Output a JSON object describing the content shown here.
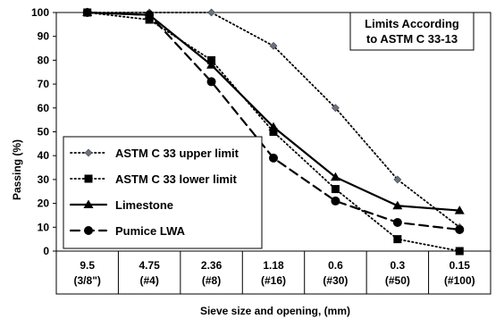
{
  "chart_data": {
    "type": "line",
    "categories": [
      {
        "top": "9.5",
        "bottom": "(3/8\")"
      },
      {
        "top": "4.75",
        "bottom": "(#4)"
      },
      {
        "top": "2.36",
        "bottom": "(#8)"
      },
      {
        "top": "1.18",
        "bottom": "(#16)"
      },
      {
        "top": "0.6",
        "bottom": "(#30)"
      },
      {
        "top": "0.3",
        "bottom": "(#50)"
      },
      {
        "top": "0.15",
        "bottom": "(#100)"
      }
    ],
    "xlabel": "Sieve size and opening, (mm)",
    "ylabel": "Passing (%)",
    "ylim": [
      0,
      100
    ],
    "yticks": [
      0,
      10,
      20,
      30,
      40,
      50,
      60,
      70,
      80,
      90,
      100
    ],
    "annotation": {
      "line1": "Limits According",
      "line2": "to ASTM C 33-13"
    },
    "legend_position": "lower-left",
    "series": [
      {
        "name": "ASTM C 33 upper limit",
        "values": [
          100,
          100,
          100,
          86,
          60,
          30,
          10
        ],
        "style": "dotted",
        "marker": "diamond",
        "color": "#000000"
      },
      {
        "name": "ASTM C 33 lower limit",
        "values": [
          100,
          97,
          80,
          50,
          26,
          5,
          0
        ],
        "style": "dotted",
        "marker": "square",
        "color": "#000000"
      },
      {
        "name": "Limestone",
        "values": [
          100,
          99,
          78,
          52,
          31,
          19,
          17
        ],
        "style": "solid",
        "marker": "triangle",
        "color": "#000000"
      },
      {
        "name": "Pumice LWA",
        "values": [
          100,
          99,
          71,
          39,
          21,
          12,
          9
        ],
        "style": "dashed",
        "marker": "circle",
        "color": "#000000"
      }
    ]
  }
}
